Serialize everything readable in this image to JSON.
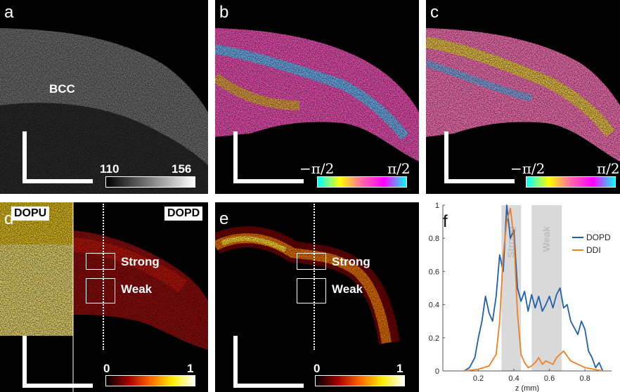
{
  "panels": {
    "a": {
      "label": "a",
      "feature": "BCC",
      "cbar_min": "110",
      "cbar_max": "156"
    },
    "b": {
      "label": "b",
      "cbar_min": "−π/2",
      "cbar_max": "π/2"
    },
    "c": {
      "label": "c",
      "cbar_min": "−π/2",
      "cbar_max": "π/2"
    },
    "d": {
      "label": "d",
      "tag_left": "DOPU",
      "tag_right": "DOPD",
      "roi_strong": "Strong",
      "roi_weak": "Weak",
      "cbar_min": "0",
      "cbar_max": "1"
    },
    "e": {
      "label": "e",
      "roi_strong": "Strong",
      "roi_weak": "Weak",
      "cbar_min": "0",
      "cbar_max": "1"
    },
    "f": {
      "label": "f"
    }
  },
  "colors": {
    "background": "#000000",
    "dopd": "#1f5fad",
    "ddi": "#ef7f26",
    "shade": "#d9d9d9"
  },
  "chart_data": {
    "type": "line",
    "xlabel": "z (mm)",
    "ylabel": "",
    "xlim": [
      0,
      0.95
    ],
    "ylim": [
      0,
      1
    ],
    "xticks": [
      "0.2",
      "0.4",
      "0.6",
      "0.8"
    ],
    "yticks": [
      "0",
      "0.2",
      "0.4",
      "0.6",
      "0.8",
      "1"
    ],
    "shaded_regions": [
      {
        "name": "Strong",
        "x": [
          0.33,
          0.44
        ]
      },
      {
        "name": "Weak",
        "x": [
          0.5,
          0.67
        ]
      }
    ],
    "legend": "top-right",
    "series": [
      {
        "name": "DOPD",
        "color": "#1f5fad",
        "x": [
          0.12,
          0.15,
          0.18,
          0.2,
          0.22,
          0.24,
          0.26,
          0.28,
          0.3,
          0.32,
          0.34,
          0.36,
          0.38,
          0.4,
          0.42,
          0.44,
          0.46,
          0.48,
          0.5,
          0.52,
          0.54,
          0.56,
          0.58,
          0.6,
          0.62,
          0.64,
          0.66,
          0.68,
          0.7,
          0.72,
          0.74,
          0.76,
          0.78,
          0.8,
          0.82,
          0.84,
          0.86,
          0.88,
          0.9
        ],
        "y": [
          0,
          0.02,
          0.08,
          0.2,
          0.3,
          0.45,
          0.35,
          0.3,
          0.45,
          0.7,
          0.6,
          1.0,
          0.8,
          0.85,
          0.5,
          0.42,
          0.48,
          0.36,
          0.46,
          0.38,
          0.45,
          0.36,
          0.4,
          0.45,
          0.38,
          0.46,
          0.5,
          0.38,
          0.4,
          0.3,
          0.26,
          0.22,
          0.3,
          0.25,
          0.12,
          0.08,
          0.02,
          0.05,
          0.0
        ]
      },
      {
        "name": "DDI",
        "color": "#ef7f26",
        "x": [
          0.12,
          0.2,
          0.26,
          0.3,
          0.32,
          0.34,
          0.36,
          0.38,
          0.4,
          0.42,
          0.44,
          0.46,
          0.48,
          0.5,
          0.52,
          0.54,
          0.56,
          0.58,
          0.6,
          0.62,
          0.64,
          0.66,
          0.68,
          0.7,
          0.72,
          0.74,
          0.76,
          0.78,
          0.8,
          0.85,
          0.9
        ],
        "y": [
          0,
          0.01,
          0.03,
          0.1,
          0.3,
          0.7,
          0.9,
          0.98,
          0.8,
          0.35,
          0.1,
          0.05,
          0.02,
          0.03,
          0.05,
          0.08,
          0.04,
          0.06,
          0.05,
          0.04,
          0.08,
          0.1,
          0.12,
          0.09,
          0.06,
          0.05,
          0.04,
          0.03,
          0.02,
          0.01,
          0.0
        ]
      }
    ]
  }
}
